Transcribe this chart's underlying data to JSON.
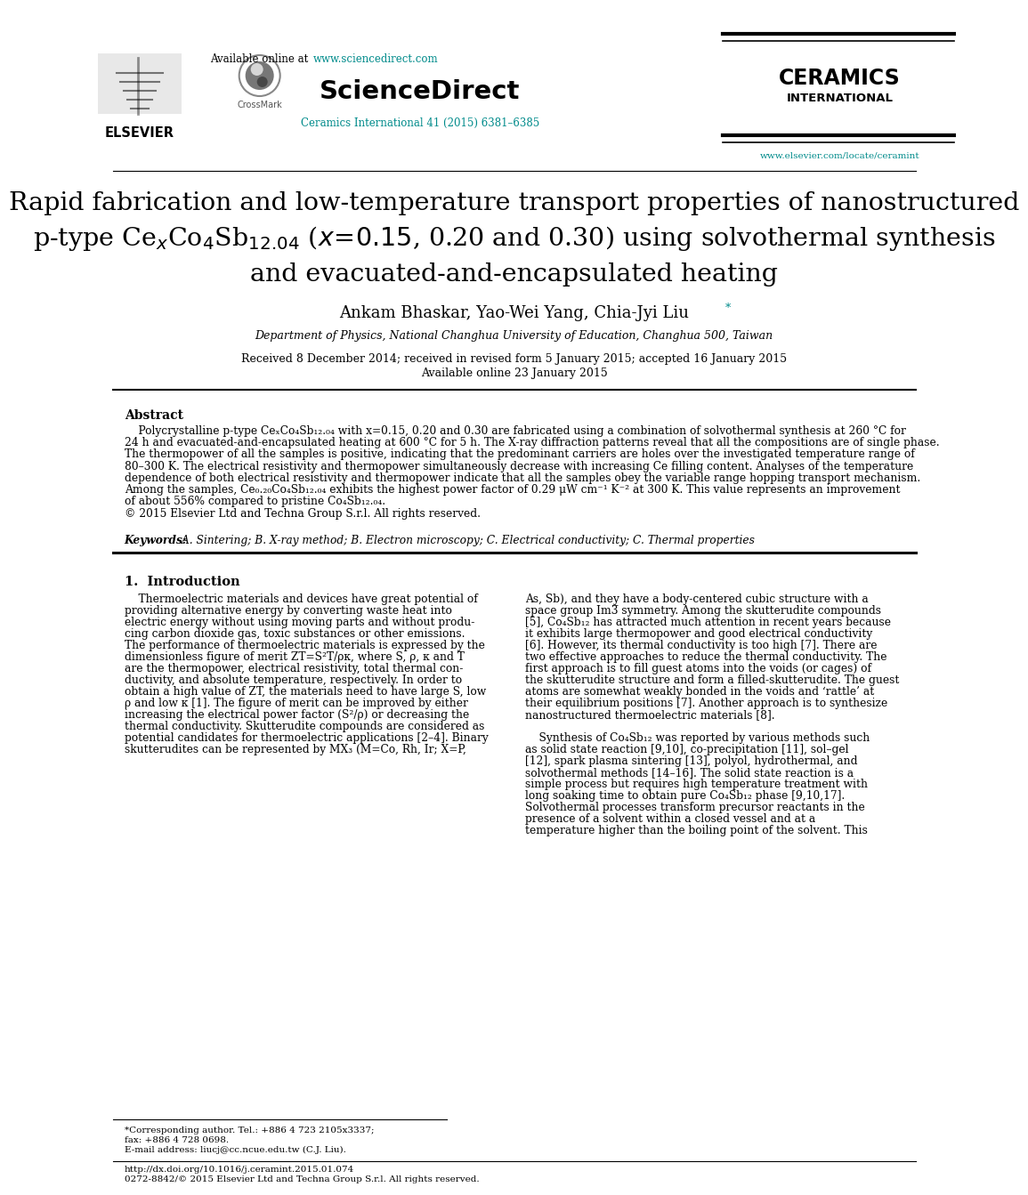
{
  "bg_color": "#ffffff",
  "header": {
    "available_online_prefix": "Available online at ",
    "available_online_url": "www.sciencedirect.com",
    "sciencedirect_text": "ScienceDirect",
    "journal_citation": "Ceramics International 41 (2015) 6381–6385",
    "ceramics_title": "CERAMICS",
    "ceramics_subtitle": "INTERNATIONAL",
    "elsevier_text": "ELSEVIER",
    "crossmark_text": "CrossMark",
    "journal_url": "www.elsevier.com/locate/ceramint"
  },
  "article_title_line1": "Rapid fabrication and low-temperature transport properties of nanostructured",
  "article_title_line2": "p-type Ce$_x$Co$_4$Sb$_{12.04}$ ($x\\!=\\!0.15$, 0.20 and 0.30) using solvothermal synthesis",
  "article_title_line3": "and evacuated-and-encapsulated heating",
  "authors": "Ankam Bhaskar, Yao-Wei Yang, Chia-Jyi Liu",
  "affiliation": "Department of Physics, National Changhua University of Education, Changhua 500, Taiwan",
  "received": "Received 8 December 2014; received in revised form 5 January 2015; accepted 16 January 2015",
  "available_online": "Available online 23 January 2015",
  "abstract_title": "Abstract",
  "abstract_lines": [
    "    Polycrystalline p-type CeₓCo₄Sb₁₂.₀₄ with x=0.15, 0.20 and 0.30 are fabricated using a combination of solvothermal synthesis at 260 °C for",
    "24 h and evacuated-and-encapsulated heating at 600 °C for 5 h. The X-ray diffraction patterns reveal that all the compositions are of single phase.",
    "The thermopower of all the samples is positive, indicating that the predominant carriers are holes over the investigated temperature range of",
    "80–300 K. The electrical resistivity and thermopower simultaneously decrease with increasing Ce filling content. Analyses of the temperature",
    "dependence of both electrical resistivity and thermopower indicate that all the samples obey the variable range hopping transport mechanism.",
    "Among the samples, Ce₀.₂₀Co₄Sb₁₂.₀₄ exhibits the highest power factor of 0.29 μW cm⁻¹ K⁻² at 300 K. This value represents an improvement",
    "of about 556% compared to pristine Co₄Sb₁₂.₀₄."
  ],
  "copyright": "© 2015 Elsevier Ltd and Techna Group S.r.l. All rights reserved.",
  "keywords_label": "Keywords:",
  "keywords_text": " A. Sintering; B. X-ray method; B. Electron microscopy; C. Electrical conductivity; C. Thermal properties",
  "intro_title": "1.  Introduction",
  "intro_col1_lines": [
    "    Thermoelectric materials and devices have great potential of",
    "providing alternative energy by converting waste heat into",
    "electric energy without using moving parts and without produ-",
    "cing carbon dioxide gas, toxic substances or other emissions.",
    "The performance of thermoelectric materials is expressed by the",
    "dimensionless figure of merit ZT=S²T/ρκ, where S, ρ, κ and T",
    "are the thermopower, electrical resistivity, total thermal con-",
    "ductivity, and absolute temperature, respectively. In order to",
    "obtain a high value of ZT, the materials need to have large S, low",
    "ρ and low κ [1]. The figure of merit can be improved by either",
    "increasing the electrical power factor (S²/ρ) or decreasing the",
    "thermal conductivity. Skutterudite compounds are considered as",
    "potential candidates for thermoelectric applications [2–4]. Binary",
    "skutterudites can be represented by MX₃ (M=Co, Rh, Ir; X=P,"
  ],
  "intro_col2_lines": [
    "As, Sb), and they have a body-centered cubic structure with a",
    "space group Im3̅ symmetry. Among the skutterudite compounds",
    "[5], Co₄Sb₁₂ has attracted much attention in recent years because",
    "it exhibits large thermopower and good electrical conductivity",
    "[6]. However, its thermal conductivity is too high [7]. There are",
    "two effective approaches to reduce the thermal conductivity. The",
    "first approach is to fill guest atoms into the voids (or cages) of",
    "the skutterudite structure and form a filled-skutterudite. The guest",
    "atoms are somewhat weakly bonded in the voids and ‘rattle’ at",
    "their equilibrium positions [7]. Another approach is to synthesize",
    "nanostructured thermoelectric materials [8].",
    "",
    "    Synthesis of Co₄Sb₁₂ was reported by various methods such",
    "as solid state reaction [9,10], co-precipitation [11], sol–gel",
    "[12], spark plasma sintering [13], polyol, hydrothermal, and",
    "solvothermal methods [14–16]. The solid state reaction is a",
    "simple process but requires high temperature treatment with",
    "long soaking time to obtain pure Co₄Sb₁₂ phase [9,10,17].",
    "Solvothermal processes transform precursor reactants in the",
    "presence of a solvent within a closed vessel and at a",
    "temperature higher than the boiling point of the solvent. This"
  ],
  "footnote1": "*Corresponding author. Tel.: +886 4 723 2105x3337;",
  "footnote2": "fax: +886 4 728 0698.",
  "footnote3": "E-mail address: liucj@cc.ncue.edu.tw (C.J. Liu).",
  "footer1": "http://dx.doi.org/10.1016/j.ceramint.2015.01.074",
  "footer2": "0272-8842/© 2015 Elsevier Ltd and Techna Group S.r.l. All rights reserved.",
  "colors": {
    "link_color": "#008B8B",
    "black": "#000000",
    "gray": "#555555"
  }
}
